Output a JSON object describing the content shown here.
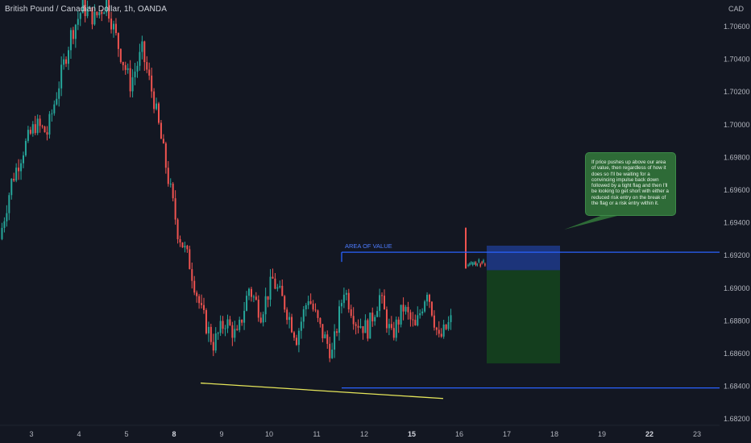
{
  "header": {
    "symbol_title": "British Pound / Canadian Dollar, 1h, OANDA",
    "currency": "CAD"
  },
  "annotations": {
    "area_label": "AREA OF VALUE",
    "callout_text": "If price pushes up above our area of value, then regardless of how it does so I'll be waiting for a convincing impulse back down followed by a tight flag and then I'll be looking to get short with either a reduced risk entry on the break of the flag or a risk entry within it."
  },
  "colors": {
    "background": "#131722",
    "up_candle": "#26a69a",
    "down_candle": "#ef5350",
    "level_line": "#2962ff",
    "trend_line": "#e6e65a",
    "risk_zone": "#1e3a8a",
    "reward_zone": "#14401f",
    "callout_bg": "#2e6b37"
  },
  "chart_data": {
    "type": "candlestick",
    "title": "British Pound / Canadian Dollar, 1h, OANDA",
    "y_axis": {
      "unit": "CAD",
      "ticks": [
        "1.70600",
        "1.70400",
        "1.70200",
        "1.70000",
        "1.69800",
        "1.69600",
        "1.69400",
        "1.69200",
        "1.69000",
        "1.68800",
        "1.68600",
        "1.68400",
        "1.68200"
      ],
      "range": [
        1.6812,
        1.7079
      ]
    },
    "x_axis": {
      "ticks": [
        {
          "label": "3",
          "bold": false
        },
        {
          "label": "4",
          "bold": false
        },
        {
          "label": "5",
          "bold": false
        },
        {
          "label": "8",
          "bold": true
        },
        {
          "label": "9",
          "bold": false
        },
        {
          "label": "10",
          "bold": false
        },
        {
          "label": "11",
          "bold": false
        },
        {
          "label": "12",
          "bold": false
        },
        {
          "label": "15",
          "bold": true
        },
        {
          "label": "16",
          "bold": false
        },
        {
          "label": "17",
          "bold": false
        },
        {
          "label": "18",
          "bold": false
        },
        {
          "label": "19",
          "bold": false
        },
        {
          "label": "22",
          "bold": true
        },
        {
          "label": "23",
          "bold": false
        }
      ]
    },
    "segments": [
      {
        "from": 1.693,
        "to": 1.6965
      },
      {
        "from": 1.6965,
        "to": 1.6985
      },
      {
        "from": 1.6985,
        "to": 1.7
      },
      {
        "from": 1.7,
        "to": 1.6995
      },
      {
        "from": 1.6995,
        "to": 1.7025
      },
      {
        "from": 1.7025,
        "to": 1.7055
      },
      {
        "from": 1.7055,
        "to": 1.7072
      },
      {
        "from": 1.7072,
        "to": 1.7065
      },
      {
        "from": 1.7065,
        "to": 1.7075
      },
      {
        "from": 1.7075,
        "to": 1.7048
      },
      {
        "from": 1.7048,
        "to": 1.7025
      },
      {
        "from": 1.7025,
        "to": 1.7045
      },
      {
        "from": 1.7045,
        "to": 1.7015
      },
      {
        "from": 1.7015,
        "to": 1.6975
      },
      {
        "from": 1.6975,
        "to": 1.6935
      },
      {
        "from": 1.6935,
        "to": 1.6915
      },
      {
        "from": 1.6915,
        "to": 1.6885
      },
      {
        "from": 1.6885,
        "to": 1.6866
      },
      {
        "from": 1.6866,
        "to": 1.688
      },
      {
        "from": 1.688,
        "to": 1.687
      },
      {
        "from": 1.687,
        "to": 1.69
      },
      {
        "from": 1.69,
        "to": 1.6885
      },
      {
        "from": 1.6885,
        "to": 1.6905
      },
      {
        "from": 1.6905,
        "to": 1.689
      },
      {
        "from": 1.689,
        "to": 1.687
      },
      {
        "from": 1.687,
        "to": 1.6895
      },
      {
        "from": 1.6895,
        "to": 1.6875
      },
      {
        "from": 1.6875,
        "to": 1.686
      },
      {
        "from": 1.686,
        "to": 1.69
      },
      {
        "from": 1.69,
        "to": 1.688
      },
      {
        "from": 1.688,
        "to": 1.6875
      },
      {
        "from": 1.6875,
        "to": 1.6895
      },
      {
        "from": 1.6895,
        "to": 1.687
      },
      {
        "from": 1.687,
        "to": 1.6888
      },
      {
        "from": 1.6888,
        "to": 1.6875
      },
      {
        "from": 1.6875,
        "to": 1.69
      },
      {
        "from": 1.69,
        "to": 1.6868
      },
      {
        "from": 1.6868,
        "to": 1.688
      }
    ],
    "spike": {
      "open": 1.6912,
      "high": 1.6937,
      "low": 1.6912,
      "close": 1.6915
    },
    "flag": {
      "from": 1.6914,
      "to": 1.6918
    },
    "levels": [
      {
        "name": "area_of_value",
        "price": 1.6922,
        "from_day": "11",
        "to": "right_edge"
      },
      {
        "name": "support",
        "price": 1.6839,
        "from_day": "11",
        "to": "right_edge"
      }
    ],
    "trendline": {
      "from_price": 1.6842,
      "to_price": 1.6835
    },
    "position_box": {
      "stop": 1.6926,
      "entry": 1.6911,
      "target": 1.6854
    }
  }
}
